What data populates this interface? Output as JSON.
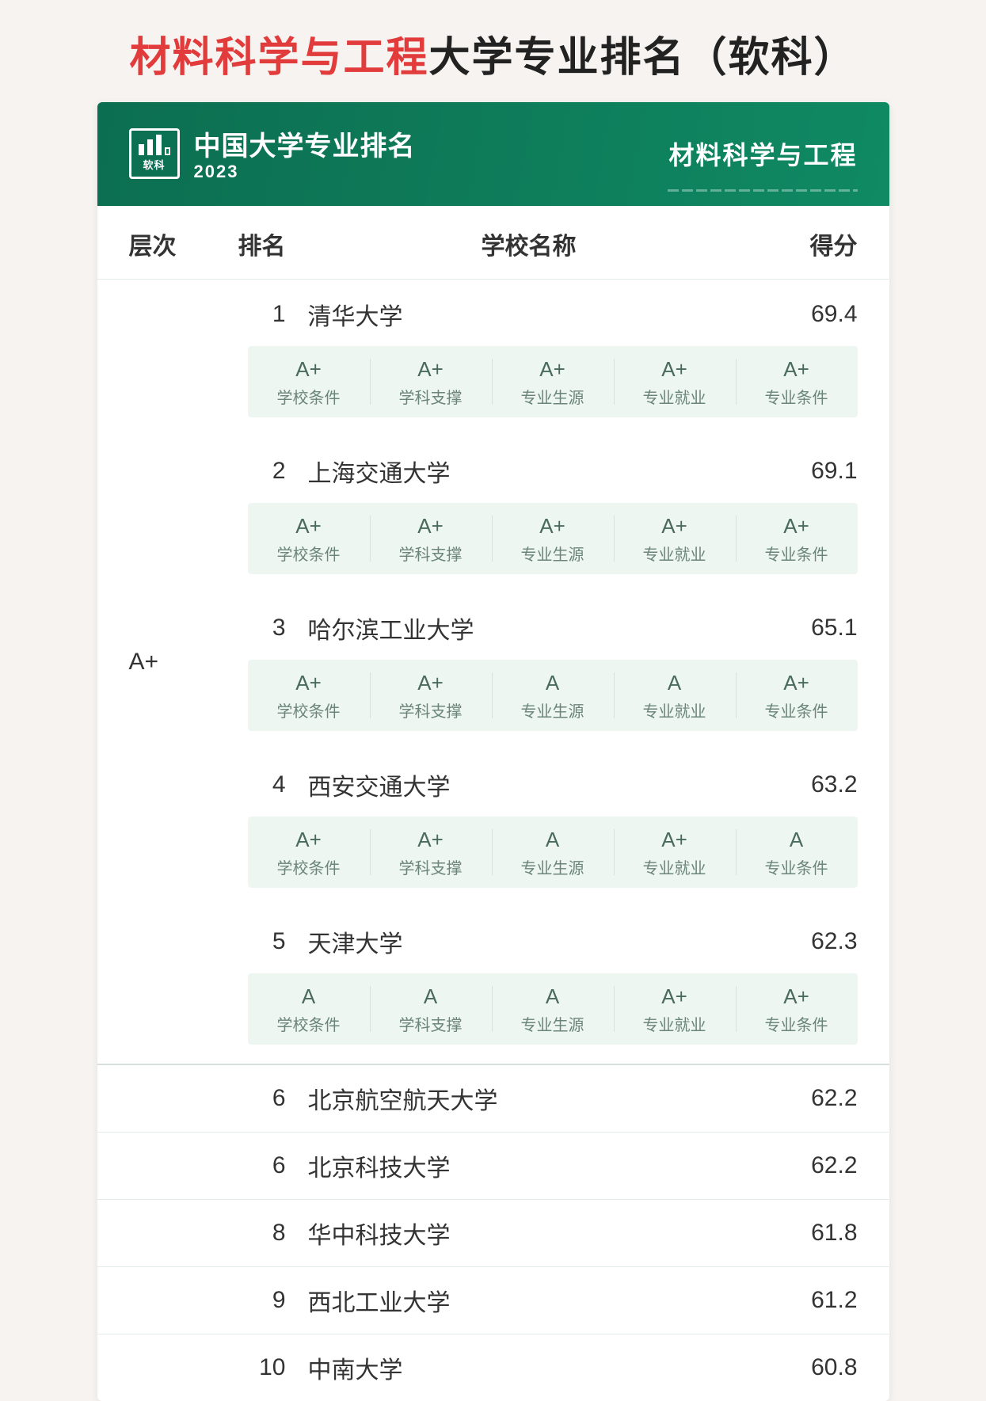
{
  "title": {
    "highlight": "材料科学与工程",
    "rest": "大学专业排名（软科）"
  },
  "banner": {
    "logo_small_text": "软科",
    "line1": "中国大学专业排名",
    "year": "2023",
    "subject": "材料科学与工程"
  },
  "columns": {
    "tier": "层次",
    "rank": "排名",
    "name": "学校名称",
    "score": "得分"
  },
  "metric_labels": [
    "学校条件",
    "学科支撑",
    "专业生源",
    "专业就业",
    "专业条件"
  ],
  "tier_a_plus": {
    "label": "A+",
    "entries": [
      {
        "rank": "1",
        "name": "清华大学",
        "score": "69.4",
        "grades": [
          "A+",
          "A+",
          "A+",
          "A+",
          "A+"
        ]
      },
      {
        "rank": "2",
        "name": "上海交通大学",
        "score": "69.1",
        "grades": [
          "A+",
          "A+",
          "A+",
          "A+",
          "A+"
        ]
      },
      {
        "rank": "3",
        "name": "哈尔滨工业大学",
        "score": "65.1",
        "grades": [
          "A+",
          "A+",
          "A",
          "A",
          "A+"
        ]
      },
      {
        "rank": "4",
        "name": "西安交通大学",
        "score": "63.2",
        "grades": [
          "A+",
          "A+",
          "A",
          "A+",
          "A"
        ]
      },
      {
        "rank": "5",
        "name": "天津大学",
        "score": "62.3",
        "grades": [
          "A",
          "A",
          "A",
          "A+",
          "A+"
        ]
      }
    ]
  },
  "rest_entries": [
    {
      "rank": "6",
      "name": "北京航空航天大学",
      "score": "62.2"
    },
    {
      "rank": "6",
      "name": "北京科技大学",
      "score": "62.2"
    },
    {
      "rank": "8",
      "name": "华中科技大学",
      "score": "61.8"
    },
    {
      "rank": "9",
      "name": "西北工业大学",
      "score": "61.2"
    },
    {
      "rank": "10",
      "name": "中南大学",
      "score": "60.8"
    }
  ],
  "colors": {
    "highlight": "#e23b3b",
    "banner_bg": "#0e7a58",
    "metric_bg": "#eef6f2",
    "page_bg": "#f6f3f0"
  }
}
